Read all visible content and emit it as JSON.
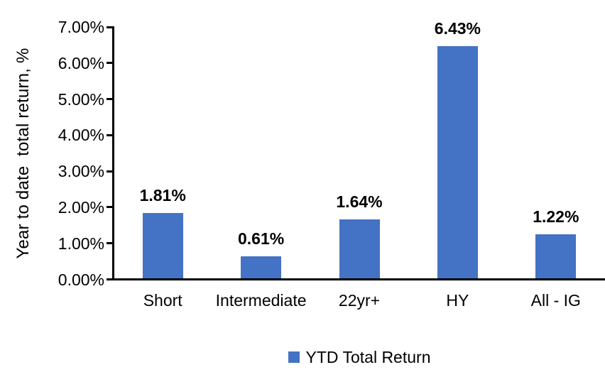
{
  "chart_data": {
    "type": "bar",
    "categories": [
      "Short",
      "Intermediate",
      "22yr+",
      "HY",
      "All - IG"
    ],
    "values": [
      1.81,
      0.61,
      1.64,
      6.43,
      1.22
    ],
    "data_labels": [
      "1.81%",
      "0.61%",
      "1.64%",
      "6.43%",
      "1.22%"
    ],
    "series_name": "YTD Total Return",
    "title": "",
    "xlabel": "",
    "ylabel": "Year to date  total return, %",
    "ylim": [
      0,
      7
    ],
    "ytick_step": 1,
    "ytick_labels": [
      "0.00%",
      "1.00%",
      "2.00%",
      "3.00%",
      "4.00%",
      "5.00%",
      "6.00%",
      "7.00%"
    ],
    "bar_color": "#4472C4",
    "axis_color": "#000000",
    "text_color": "#000000",
    "background_color": "#FFFFFF",
    "grid": false,
    "legend_position": "bottom"
  },
  "legend": {
    "label": "YTD Total Return"
  }
}
